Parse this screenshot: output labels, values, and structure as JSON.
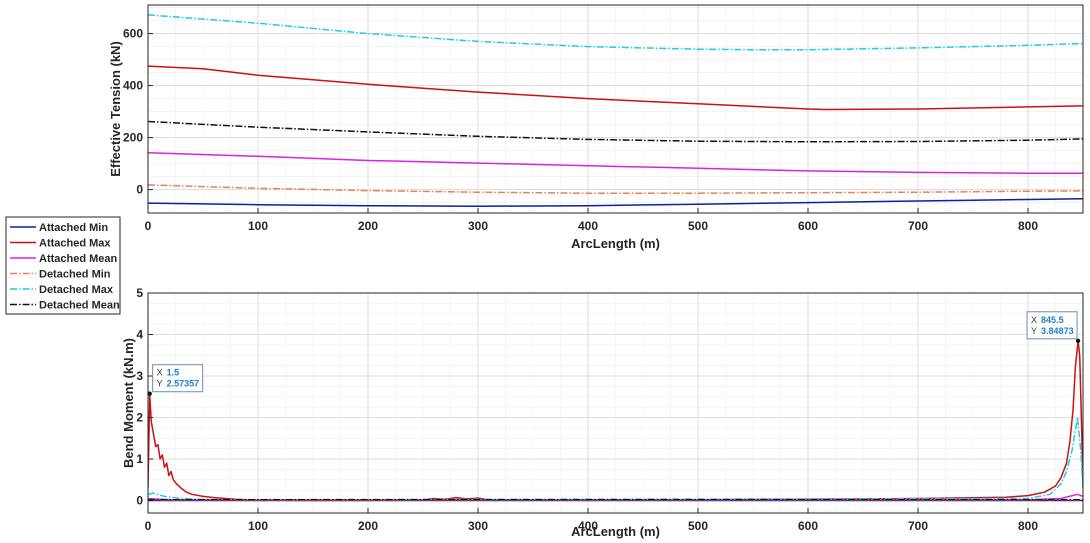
{
  "legend": {
    "placement": "left",
    "entries": [
      {
        "label": "Attached Min",
        "color": "#0b1fa8",
        "dash": "solid"
      },
      {
        "label": "Attached Max",
        "color": "#cc1111",
        "dash": "solid"
      },
      {
        "label": "Attached Mean",
        "color": "#dd22dd",
        "dash": "solid"
      },
      {
        "label": "Detached Min",
        "color": "#e8805a",
        "dash": "dashdot"
      },
      {
        "label": "Detached Max",
        "color": "#22ccdd",
        "dash": "dashdot"
      },
      {
        "label": "Detached Mean",
        "color": "#111111",
        "dash": "dashdot"
      }
    ]
  },
  "chart_data": [
    {
      "type": "line",
      "title": "",
      "xlabel": "ArcLength (m)",
      "ylabel": "Effective Tension (kN)",
      "xlim": [
        0,
        850
      ],
      "ylim": [
        -90,
        710
      ],
      "xticks": [
        0,
        100,
        200,
        300,
        400,
        500,
        600,
        700,
        800
      ],
      "yticks": [
        0,
        200,
        400,
        600
      ],
      "grid": true,
      "series": [
        {
          "name": "Attached Min",
          "x": [
            0,
            100,
            200,
            300,
            400,
            500,
            600,
            700,
            800,
            850
          ],
          "y": [
            -52,
            -58,
            -62,
            -64,
            -62,
            -56,
            -50,
            -44,
            -38,
            -35
          ]
        },
        {
          "name": "Attached Max",
          "x": [
            0,
            50,
            100,
            200,
            300,
            400,
            500,
            600,
            615,
            700,
            800,
            850
          ],
          "y": [
            475,
            465,
            440,
            405,
            375,
            350,
            330,
            310,
            308,
            310,
            318,
            322
          ]
        },
        {
          "name": "Attached Mean",
          "x": [
            0,
            100,
            200,
            300,
            400,
            500,
            600,
            700,
            800,
            850
          ],
          "y": [
            142,
            128,
            112,
            102,
            92,
            82,
            72,
            66,
            63,
            63
          ]
        },
        {
          "name": "Detached Min",
          "x": [
            0,
            100,
            200,
            300,
            400,
            500,
            600,
            700,
            800,
            850
          ],
          "y": [
            18,
            5,
            -4,
            -10,
            -14,
            -14,
            -12,
            -10,
            -6,
            -5
          ]
        },
        {
          "name": "Detached Max",
          "x": [
            0,
            100,
            200,
            300,
            400,
            500,
            550,
            600,
            700,
            800,
            850
          ],
          "y": [
            672,
            640,
            600,
            570,
            550,
            540,
            538,
            538,
            545,
            555,
            562
          ]
        },
        {
          "name": "Detached Mean",
          "x": [
            0,
            100,
            200,
            300,
            400,
            500,
            600,
            700,
            800,
            850
          ],
          "y": [
            262,
            240,
            222,
            205,
            193,
            186,
            184,
            185,
            190,
            195
          ]
        }
      ]
    },
    {
      "type": "line",
      "title": "",
      "xlabel": "ArcLength (m)",
      "ylabel": "Bend Moment (kN.m)",
      "xlim": [
        0,
        850
      ],
      "ylim": [
        -0.3,
        5
      ],
      "xticks": [
        0,
        100,
        200,
        300,
        400,
        500,
        600,
        700,
        800
      ],
      "yticks": [
        0,
        1,
        2,
        3,
        4,
        5
      ],
      "grid": true,
      "series": [
        {
          "name": "Attached Min",
          "x": [
            0,
            850
          ],
          "y": [
            0,
            0
          ]
        },
        {
          "name": "Attached Max",
          "x": [
            0,
            1.5,
            3,
            5,
            7,
            9,
            11,
            13,
            15,
            17,
            19,
            21,
            23,
            26,
            30,
            35,
            40,
            50,
            60,
            80,
            100,
            150,
            200,
            250,
            260,
            270,
            280,
            290,
            300,
            310,
            400,
            500,
            600,
            700,
            780,
            800,
            815,
            825,
            830,
            835,
            838,
            841,
            843,
            845.5,
            847,
            849,
            850
          ],
          "y": [
            0.3,
            2.57,
            1.9,
            1.6,
            1.3,
            1.35,
            1.0,
            1.1,
            0.8,
            0.9,
            0.6,
            0.7,
            0.5,
            0.4,
            0.3,
            0.2,
            0.15,
            0.1,
            0.07,
            0.03,
            0.01,
            0.0,
            0.0,
            0.02,
            0.05,
            0.03,
            0.07,
            0.04,
            0.06,
            0.02,
            0.01,
            0.02,
            0.03,
            0.05,
            0.08,
            0.12,
            0.2,
            0.35,
            0.55,
            0.9,
            1.4,
            2.2,
            3.2,
            3.849,
            3.5,
            1.5,
            0.3
          ]
        },
        {
          "name": "Attached Mean",
          "x": [
            0,
            5,
            20,
            800,
            830,
            845,
            850
          ],
          "y": [
            0.05,
            0.04,
            0.02,
            0.02,
            0.05,
            0.15,
            0.1
          ]
        },
        {
          "name": "Detached Min",
          "x": [
            0,
            850
          ],
          "y": [
            0,
            0
          ]
        },
        {
          "name": "Detached Max",
          "x": [
            0,
            5,
            15,
            30,
            60,
            800,
            820,
            830,
            835,
            840,
            845,
            848,
            850
          ],
          "y": [
            0.15,
            0.18,
            0.1,
            0.05,
            0.02,
            0.05,
            0.15,
            0.4,
            0.7,
            1.2,
            2.0,
            1.2,
            0.3
          ]
        },
        {
          "name": "Detached Mean",
          "x": [
            0,
            850
          ],
          "y": [
            0.02,
            0.02
          ]
        }
      ],
      "annotations": [
        {
          "x_label": "X",
          "x_value": "1.5",
          "y_label": "Y",
          "y_value": "2.57357",
          "x": 1.5,
          "y": 2.57357
        },
        {
          "x_label": "X",
          "x_value": "845.5",
          "y_label": "Y",
          "y_value": "3.84873",
          "x": 845.5,
          "y": 3.84873
        }
      ]
    }
  ]
}
